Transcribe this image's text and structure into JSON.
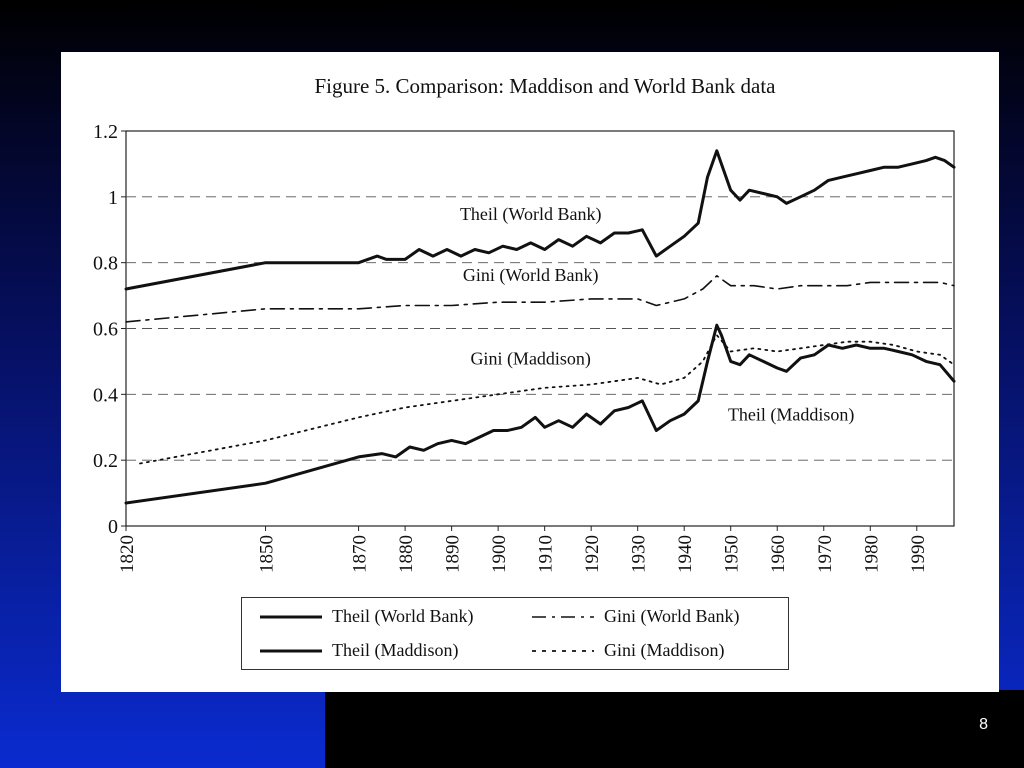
{
  "slide": {
    "page_number": "8",
    "colors": {
      "background_top": "#000000",
      "background_bottom": "#0a2bd0",
      "panel": "#ffffff"
    }
  },
  "chart_data": {
    "type": "line",
    "title": "Figure 5. Comparison: Maddison and World Bank data",
    "xlabel": "",
    "ylabel": "",
    "xlim": [
      1820,
      1998
    ],
    "ylim": [
      0,
      1.2
    ],
    "x_ticks": [
      "1820",
      "1850",
      "1870",
      "1880",
      "1890",
      "1900",
      "1910",
      "1920",
      "1930",
      "1940",
      "1950",
      "1960",
      "1970",
      "1980",
      "1990"
    ],
    "y_ticks": [
      "0",
      "0.2",
      "0.4",
      "0.6",
      "0.8",
      "1",
      "1.2"
    ],
    "grid": "horizontal dashed",
    "legend": "bottom",
    "series": [
      {
        "name": "Theil (World Bank)",
        "style": "solid-thick",
        "points": [
          [
            1820,
            0.72
          ],
          [
            1850,
            0.8
          ],
          [
            1870,
            0.8
          ],
          [
            1874,
            0.82
          ],
          [
            1876,
            0.81
          ],
          [
            1880,
            0.81
          ],
          [
            1883,
            0.84
          ],
          [
            1886,
            0.82
          ],
          [
            1889,
            0.84
          ],
          [
            1892,
            0.82
          ],
          [
            1895,
            0.84
          ],
          [
            1898,
            0.83
          ],
          [
            1901,
            0.85
          ],
          [
            1904,
            0.84
          ],
          [
            1907,
            0.86
          ],
          [
            1910,
            0.84
          ],
          [
            1913,
            0.87
          ],
          [
            1916,
            0.85
          ],
          [
            1919,
            0.88
          ],
          [
            1922,
            0.86
          ],
          [
            1925,
            0.89
          ],
          [
            1928,
            0.89
          ],
          [
            1931,
            0.9
          ],
          [
            1934,
            0.82
          ],
          [
            1937,
            0.85
          ],
          [
            1940,
            0.88
          ],
          [
            1943,
            0.92
          ],
          [
            1945,
            1.06
          ],
          [
            1947,
            1.14
          ],
          [
            1948,
            1.1
          ],
          [
            1950,
            1.02
          ],
          [
            1952,
            0.99
          ],
          [
            1954,
            1.02
          ],
          [
            1957,
            1.01
          ],
          [
            1960,
            1.0
          ],
          [
            1962,
            0.98
          ],
          [
            1965,
            1.0
          ],
          [
            1968,
            1.02
          ],
          [
            1971,
            1.05
          ],
          [
            1974,
            1.06
          ],
          [
            1977,
            1.07
          ],
          [
            1980,
            1.08
          ],
          [
            1983,
            1.09
          ],
          [
            1986,
            1.09
          ],
          [
            1989,
            1.1
          ],
          [
            1992,
            1.11
          ],
          [
            1994,
            1.12
          ],
          [
            1996,
            1.11
          ],
          [
            1998,
            1.09
          ]
        ]
      },
      {
        "name": "Gini (World Bank)",
        "style": "dash-dot",
        "points": [
          [
            1820,
            0.62
          ],
          [
            1850,
            0.66
          ],
          [
            1870,
            0.66
          ],
          [
            1880,
            0.67
          ],
          [
            1890,
            0.67
          ],
          [
            1900,
            0.68
          ],
          [
            1910,
            0.68
          ],
          [
            1920,
            0.69
          ],
          [
            1930,
            0.69
          ],
          [
            1934,
            0.67
          ],
          [
            1940,
            0.69
          ],
          [
            1944,
            0.72
          ],
          [
            1947,
            0.76
          ],
          [
            1950,
            0.73
          ],
          [
            1955,
            0.73
          ],
          [
            1960,
            0.72
          ],
          [
            1965,
            0.73
          ],
          [
            1970,
            0.73
          ],
          [
            1975,
            0.73
          ],
          [
            1980,
            0.74
          ],
          [
            1985,
            0.74
          ],
          [
            1990,
            0.74
          ],
          [
            1995,
            0.74
          ],
          [
            1998,
            0.73
          ]
        ]
      },
      {
        "name": "Theil (Maddison)",
        "style": "solid-thick",
        "points": [
          [
            1820,
            0.07
          ],
          [
            1850,
            0.13
          ],
          [
            1870,
            0.21
          ],
          [
            1875,
            0.22
          ],
          [
            1878,
            0.21
          ],
          [
            1881,
            0.24
          ],
          [
            1884,
            0.23
          ],
          [
            1887,
            0.25
          ],
          [
            1890,
            0.26
          ],
          [
            1893,
            0.25
          ],
          [
            1896,
            0.27
          ],
          [
            1899,
            0.29
          ],
          [
            1902,
            0.29
          ],
          [
            1905,
            0.3
          ],
          [
            1908,
            0.33
          ],
          [
            1910,
            0.3
          ],
          [
            1913,
            0.32
          ],
          [
            1916,
            0.3
          ],
          [
            1919,
            0.34
          ],
          [
            1922,
            0.31
          ],
          [
            1925,
            0.35
          ],
          [
            1928,
            0.36
          ],
          [
            1931,
            0.38
          ],
          [
            1934,
            0.29
          ],
          [
            1937,
            0.32
          ],
          [
            1940,
            0.34
          ],
          [
            1943,
            0.38
          ],
          [
            1945,
            0.5
          ],
          [
            1947,
            0.61
          ],
          [
            1948,
            0.58
          ],
          [
            1950,
            0.5
          ],
          [
            1952,
            0.49
          ],
          [
            1954,
            0.52
          ],
          [
            1957,
            0.5
          ],
          [
            1960,
            0.48
          ],
          [
            1962,
            0.47
          ],
          [
            1965,
            0.51
          ],
          [
            1968,
            0.52
          ],
          [
            1971,
            0.55
          ],
          [
            1974,
            0.54
          ],
          [
            1977,
            0.55
          ],
          [
            1980,
            0.54
          ],
          [
            1983,
            0.54
          ],
          [
            1986,
            0.53
          ],
          [
            1989,
            0.52
          ],
          [
            1992,
            0.5
          ],
          [
            1995,
            0.49
          ],
          [
            1998,
            0.44
          ]
        ]
      },
      {
        "name": "Gini (Maddison)",
        "style": "dotted",
        "points": [
          [
            1823,
            0.19
          ],
          [
            1850,
            0.26
          ],
          [
            1870,
            0.33
          ],
          [
            1880,
            0.36
          ],
          [
            1890,
            0.38
          ],
          [
            1900,
            0.4
          ],
          [
            1910,
            0.42
          ],
          [
            1920,
            0.43
          ],
          [
            1930,
            0.45
          ],
          [
            1935,
            0.43
          ],
          [
            1940,
            0.45
          ],
          [
            1944,
            0.5
          ],
          [
            1947,
            0.58
          ],
          [
            1950,
            0.53
          ],
          [
            1955,
            0.54
          ],
          [
            1960,
            0.53
          ],
          [
            1965,
            0.54
          ],
          [
            1970,
            0.55
          ],
          [
            1975,
            0.56
          ],
          [
            1980,
            0.56
          ],
          [
            1985,
            0.55
          ],
          [
            1990,
            0.53
          ],
          [
            1995,
            0.52
          ],
          [
            1998,
            0.49
          ]
        ]
      }
    ],
    "annotations": [
      {
        "text": "Theil (World Bank)",
        "x": 1907,
        "y": 0.93
      },
      {
        "text": "Gini (World Bank)",
        "x": 1907,
        "y": 0.745
      },
      {
        "text": "Gini (Maddison)",
        "x": 1907,
        "y": 0.49
      },
      {
        "text": "Theil (Maddison)",
        "x": 1963,
        "y": 0.32
      }
    ]
  }
}
